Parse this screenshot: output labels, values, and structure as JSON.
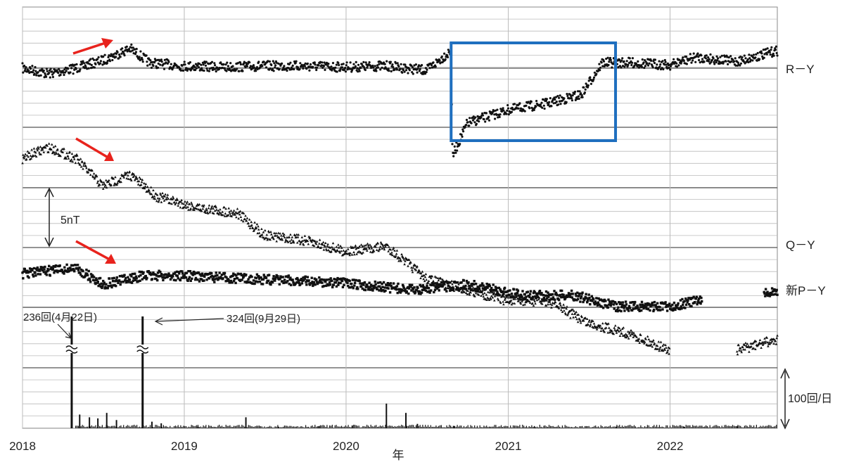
{
  "chart_data": {
    "type": "scatter",
    "title": "",
    "xlabel": "年",
    "x_ticks": [
      "2018",
      "2019",
      "2020",
      "2021",
      "2022"
    ],
    "x_range": [
      "2018-01-01",
      "2022-08-31"
    ],
    "grid": true,
    "panels": [
      {
        "name": "R－Y",
        "marker": "circle",
        "points": [
          [
            "2018-01-01",
            0.0
          ],
          [
            "2018-03-01",
            -0.5
          ],
          [
            "2018-05-01",
            0.0
          ],
          [
            "2018-07-01",
            0.7
          ],
          [
            "2018-09-01",
            1.8
          ],
          [
            "2018-10-15",
            0.5
          ],
          [
            "2019-01-01",
            0.2
          ],
          [
            "2019-04-01",
            0.1
          ],
          [
            "2019-07-01",
            0.2
          ],
          [
            "2019-10-01",
            0.2
          ],
          [
            "2020-01-01",
            0.1
          ],
          [
            "2020-04-01",
            0.2
          ],
          [
            "2020-07-01",
            -0.2
          ],
          [
            "2020-08-25",
            1.6
          ],
          [
            "2020-08-28",
            -8.0
          ],
          [
            "2020-10-01",
            -5.0
          ],
          [
            "2021-01-01",
            -3.8
          ],
          [
            "2021-04-01",
            -3.2
          ],
          [
            "2021-06-15",
            -2.4
          ],
          [
            "2021-08-01",
            0.5
          ],
          [
            "2021-10-01",
            0.5
          ],
          [
            "2022-01-01",
            0.3
          ],
          [
            "2022-03-01",
            1.0
          ],
          [
            "2022-06-01",
            0.6
          ],
          [
            "2022-08-31",
            1.6
          ]
        ]
      },
      {
        "name": "Q－Y",
        "marker": "triangle",
        "points": [
          [
            "2018-01-01",
            0.0
          ],
          [
            "2018-03-01",
            1.0
          ],
          [
            "2018-05-01",
            0.0
          ],
          [
            "2018-07-01",
            -2.5
          ],
          [
            "2018-09-01",
            -1.5
          ],
          [
            "2018-11-01",
            -3.5
          ],
          [
            "2019-02-01",
            -4.5
          ],
          [
            "2019-05-01",
            -5.0
          ],
          [
            "2019-07-01",
            -7.0
          ],
          [
            "2019-10-01",
            -7.5
          ],
          [
            "2020-01-01",
            -8.5
          ],
          [
            "2020-04-01",
            -8.0
          ],
          [
            "2020-07-01",
            -11.0
          ],
          [
            "2020-10-01",
            -12.0
          ],
          [
            "2021-01-01",
            -13.0
          ],
          [
            "2021-04-01",
            -13.0
          ],
          [
            "2021-07-01",
            -15.0
          ],
          [
            "2021-10-01",
            -16.0
          ],
          [
            "2021-12-31",
            -17.5
          ],
          [
            "2022-06-01",
            -17.5
          ],
          [
            "2022-08-31",
            -16.5
          ]
        ],
        "gap": [
          "2022-01-01",
          "2022-05-31"
        ]
      },
      {
        "name": "新P－Y",
        "marker": "square",
        "points": [
          [
            "2018-01-01",
            0.0
          ],
          [
            "2018-05-01",
            0.5
          ],
          [
            "2018-07-01",
            -1.0
          ],
          [
            "2018-10-01",
            -0.2
          ],
          [
            "2019-01-01",
            -0.2
          ],
          [
            "2019-06-01",
            -0.5
          ],
          [
            "2019-12-01",
            -0.8
          ],
          [
            "2020-06-01",
            -1.5
          ],
          [
            "2020-10-01",
            -1.0
          ],
          [
            "2021-02-01",
            -2.0
          ],
          [
            "2021-06-01",
            -2.0
          ],
          [
            "2021-09-01",
            -3.0
          ],
          [
            "2022-01-01",
            -3.0
          ],
          [
            "2022-03-01",
            -2.5
          ],
          [
            "2022-08-01",
            -1.8
          ],
          [
            "2022-08-31",
            -1.8
          ]
        ],
        "gap": [
          "2022-03-15",
          "2022-07-31"
        ]
      }
    ],
    "annotations": {
      "scale_bar": "5nT",
      "count_scale": "100回/日",
      "callout_1": "236回(4月22日)",
      "callout_2": "324回(9月29日)",
      "highlight_box": [
        "2020-08-25",
        "2021-08-31"
      ]
    },
    "event_counts": {
      "label_max": "100回/日",
      "bars": [
        [
          "2018-04-22",
          236
        ],
        [
          "2018-09-29",
          324
        ],
        [
          "2018-05-10",
          25
        ],
        [
          "2018-06-01",
          20
        ],
        [
          "2018-06-20",
          18
        ],
        [
          "2018-07-10",
          28
        ],
        [
          "2018-08-01",
          15
        ],
        [
          "2018-10-20",
          12
        ],
        [
          "2018-11-10",
          9
        ],
        [
          "2019-05-20",
          20
        ],
        [
          "2020-04-01",
          45
        ],
        [
          "2020-05-15",
          28
        ],
        [
          "2020-06-10",
          8
        ],
        [
          "2019-02-01",
          3
        ],
        [
          "2019-08-01",
          3
        ],
        [
          "2019-11-01",
          4
        ],
        [
          "2020-01-15",
          5
        ],
        [
          "2020-09-01",
          4
        ],
        [
          "2021-03-01",
          3
        ],
        [
          "2021-09-01",
          3
        ],
        [
          "2022-02-01",
          3
        ],
        [
          "2022-06-01",
          4
        ]
      ]
    },
    "colors": {
      "arrows": "#e8231d",
      "highlight": "#1f6fbf",
      "points": "#111111",
      "grid": "#bbbbbb"
    }
  }
}
